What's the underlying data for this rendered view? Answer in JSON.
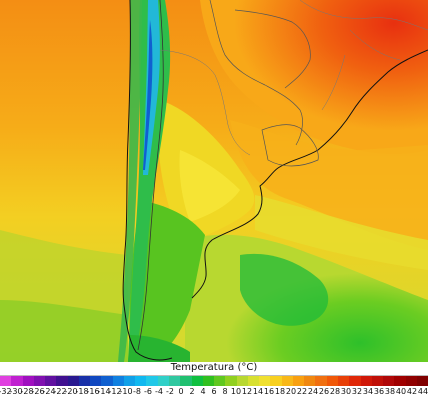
{
  "legend": {
    "title": "Temperatura (°C)",
    "ticks": [
      "-32",
      "-30",
      "-28",
      "-26",
      "-24",
      "-22",
      "-20",
      "-18",
      "-16",
      "-14",
      "-12",
      "-10",
      "-8",
      "-6",
      "-4",
      "-2",
      "0",
      "2",
      "4",
      "6",
      "8",
      "10",
      "12",
      "14",
      "16",
      "18",
      "20",
      "22",
      "24",
      "26",
      "28",
      "30",
      "32",
      "34",
      "36",
      "38",
      "40",
      "42",
      "44"
    ],
    "colors": [
      "#e040e0",
      "#c020d0",
      "#a010c0",
      "#8010b0",
      "#6010a0",
      "#401090",
      "#281890",
      "#1830a8",
      "#1048c0",
      "#1060d0",
      "#1080e0",
      "#10a0e8",
      "#10b8f0",
      "#20c8e8",
      "#30d0c8",
      "#30c8a0",
      "#20c070",
      "#10c040",
      "#30c020",
      "#60c820",
      "#90d020",
      "#b8d830",
      "#d8e030",
      "#f0e030",
      "#f8d020",
      "#f8b818",
      "#f8a010",
      "#f08810",
      "#f07010",
      "#f05808",
      "#e84008",
      "#e02808",
      "#d01808",
      "#c01008",
      "#b00808",
      "#a00000",
      "#900000",
      "#800000"
    ]
  },
  "map": {
    "region": "South America (southern cone)",
    "quantity": "surface temperature"
  }
}
